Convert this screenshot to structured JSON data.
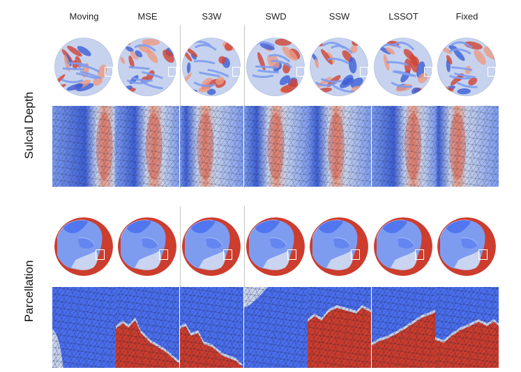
{
  "columns": [
    {
      "id": "moving",
      "label": "Moving"
    },
    {
      "id": "mse",
      "label": "MSE"
    },
    {
      "id": "s3w",
      "label": "S3W"
    },
    {
      "id": "swd",
      "label": "SWD"
    },
    {
      "id": "ssw",
      "label": "SSW"
    },
    {
      "id": "lssot",
      "label": "LSSOT"
    },
    {
      "id": "fixed",
      "label": "Fixed"
    }
  ],
  "rows": [
    {
      "id": "sulcal-depth",
      "label": "Sulcal Depth"
    },
    {
      "id": "parcellation",
      "label": "Parcellation"
    }
  ],
  "colors": {
    "blue_dark": "#3c5fd6",
    "blue_mid": "#7d9cf0",
    "blue_light": "#c7d3ee",
    "red_dark": "#d04434",
    "red_light": "#ec9a82",
    "parcel_blue": "#4a6ff0",
    "parcel_red": "#cc3d2e",
    "parcel_lavender": "#c8d4f0",
    "divider": "#c4c4c4"
  }
}
